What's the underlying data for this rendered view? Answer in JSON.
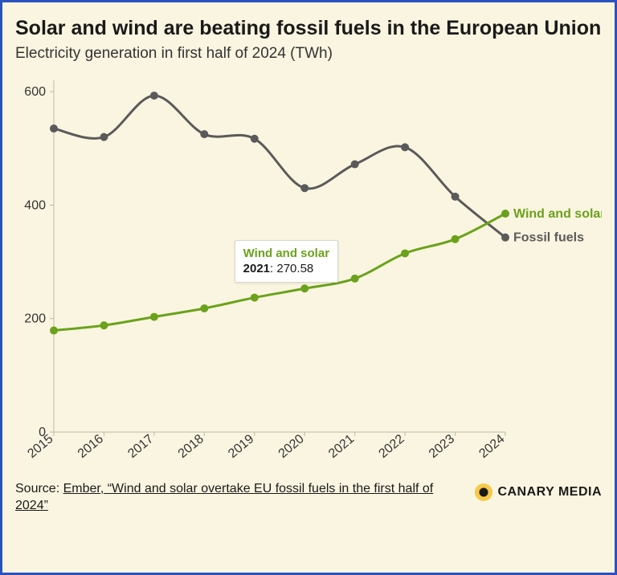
{
  "title": "Solar and wind are beating fossil fuels in the European Union",
  "subtitle": "Electricity generation in first half of 2024 (TWh)",
  "source_prefix": "Source: ",
  "source_link": "Ember, “Wind and solar overtake EU fossil fuels in the first half of 2024”",
  "logo_text": "CANARY MEDIA",
  "chart": {
    "type": "line",
    "background_color": "#faf5e0",
    "border_color": "#2a52be",
    "years": [
      2015,
      2016,
      2017,
      2018,
      2019,
      2020,
      2021,
      2022,
      2023,
      2024
    ],
    "ylim": [
      0,
      620
    ],
    "yticks": [
      0,
      200,
      400,
      600
    ],
    "axis_color": "#bdb9a6",
    "tick_label_color": "#333333",
    "tick_fontsize": 16,
    "end_label_fontsize": 16,
    "line_width": 3,
    "marker_radius": 5,
    "series": [
      {
        "name": "Fossil fuels",
        "color": "#5a5a5a",
        "values": [
          535,
          520,
          593,
          525,
          517,
          430,
          472,
          502,
          415,
          343
        ],
        "end_label": "Fossil fuels"
      },
      {
        "name": "Wind and solar",
        "color": "#6aa21b",
        "values": [
          179,
          188,
          203,
          218,
          237,
          253,
          270.58,
          315,
          340,
          385
        ],
        "end_label": "Wind and solar"
      }
    ],
    "tooltip": {
      "series_index": 1,
      "year_index": 6,
      "series_label": "Wind and solar",
      "year": "2021",
      "value": "270.58",
      "series_color": "#6aa21b"
    }
  }
}
